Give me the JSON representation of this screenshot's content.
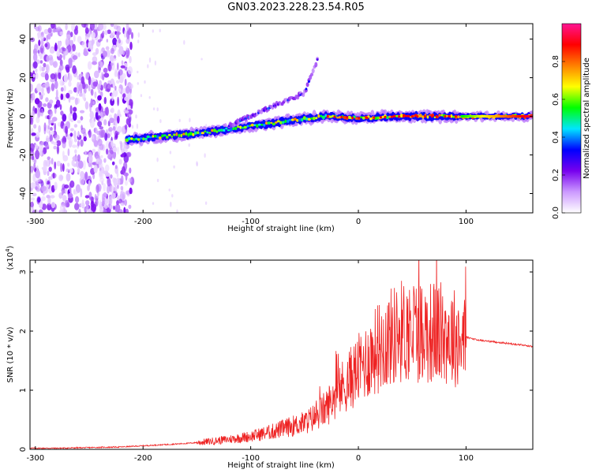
{
  "chart_data": [
    {
      "type": "heatmap",
      "title": "GN03.2023.228.23.54.R05",
      "xlabel": "Height of straight line (km)",
      "ylabel": "Frequency (Hz)",
      "xlim": [
        -305,
        162
      ],
      "ylim": [
        -50,
        48
      ],
      "xticks": [
        -300,
        -200,
        -100,
        0,
        100
      ],
      "yticks": [
        -40,
        -20,
        0,
        20,
        40
      ],
      "colorbar": {
        "label": "Normalized spectral amplitude",
        "range": [
          0.0,
          1.0
        ],
        "ticks": [
          0.0,
          0.2,
          0.4,
          0.6,
          0.8
        ],
        "colors": [
          "#ffffff",
          "#cc99ff",
          "#7700ee",
          "#0000ff",
          "#00e5ff",
          "#00ff00",
          "#ffff00",
          "#ff8000",
          "#ff0000",
          "#ff1493"
        ]
      },
      "features": [
        {
          "name": "noise-region",
          "x": [
            -305,
            -210
          ],
          "f": [
            -50,
            48
          ],
          "amplitude": 0.12
        },
        {
          "name": "main-band",
          "points": [
            [
              -215,
              -12
            ],
            [
              -150,
              -9
            ],
            [
              -100,
              -5
            ],
            [
              -60,
              -2
            ],
            [
              -30,
              0
            ],
            [
              0,
              -1
            ],
            [
              40,
              0
            ],
            [
              100,
              0
            ],
            [
              162,
              0
            ]
          ],
          "amplitude": 0.6
        },
        {
          "name": "harmonic-branch",
          "points": [
            [
              -120,
              -5
            ],
            [
              -80,
              5
            ],
            [
              -50,
              12
            ],
            [
              -37,
              31
            ]
          ],
          "amplitude": 0.3
        }
      ]
    },
    {
      "type": "line",
      "xlabel": "Height of straight line (km)",
      "ylabel": "SNR (10 * v/v)",
      "ylabel_scale": "(x10",
      "ylabel_scale_exp": "4",
      "ylabel_scale_close": ")",
      "xlim": [
        -305,
        162
      ],
      "ylim": [
        0,
        3.2
      ],
      "xticks": [
        -300,
        -200,
        -100,
        0,
        100
      ],
      "yticks": [
        0,
        1,
        2,
        3
      ],
      "line_color": "#ee2222",
      "series": [
        {
          "x": [
            -305,
            -280,
            -250,
            -220,
            -200,
            -180,
            -160,
            -140,
            -120,
            -100,
            -90,
            -80,
            -70,
            -60,
            -50,
            -40,
            -30,
            -20,
            -10,
            0,
            10,
            20,
            30,
            40,
            50,
            60,
            70,
            80,
            90,
            100,
            110,
            120,
            130,
            140,
            150,
            162
          ],
          "values": [
            0.02,
            0.02,
            0.03,
            0.04,
            0.06,
            0.08,
            0.1,
            0.13,
            0.17,
            0.22,
            0.26,
            0.3,
            0.35,
            0.4,
            0.45,
            0.55,
            0.7,
            0.95,
            1.15,
            1.35,
            1.55,
            1.75,
            1.9,
            2.0,
            2.02,
            2.0,
            1.98,
            1.95,
            1.9,
            1.9,
            1.85,
            1.83,
            1.81,
            1.79,
            1.77,
            1.74
          ]
        }
      ]
    }
  ]
}
